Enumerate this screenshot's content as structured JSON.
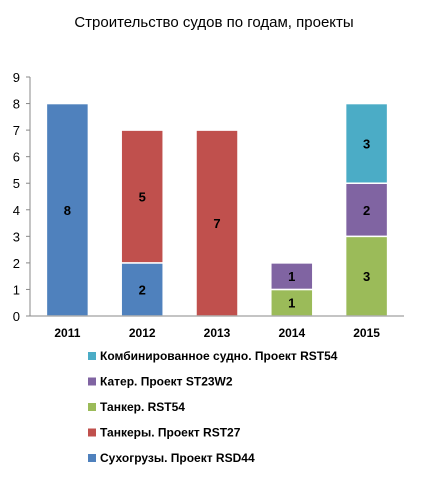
{
  "chart_data": {
    "type": "bar",
    "stacked": true,
    "title": "Строительство судов по годам, проекты",
    "xlabel": "",
    "ylabel": "",
    "ylim": [
      0,
      9
    ],
    "yticks": [
      0,
      1,
      2,
      3,
      4,
      5,
      6,
      7,
      8,
      9
    ],
    "grid": false,
    "legend_position": "bottom",
    "categories": [
      "2011",
      "2012",
      "2013",
      "2014",
      "2015"
    ],
    "series": [
      {
        "name": "Сухогрузы. Проект RSD44",
        "color": "#4f81bd",
        "values": [
          8,
          2,
          0,
          0,
          0
        ]
      },
      {
        "name": "Танкеры. Проект RST27",
        "color": "#c0504d",
        "values": [
          0,
          5,
          7,
          0,
          0
        ]
      },
      {
        "name": "Танкер. RST54",
        "color": "#9bbb59",
        "values": [
          0,
          0,
          0,
          1,
          3
        ]
      },
      {
        "name": "Катер. Проект ST23W2",
        "color": "#8064a2",
        "values": [
          0,
          0,
          0,
          1,
          2
        ]
      },
      {
        "name": "Комбинированное судно. Проект RST54",
        "color": "#4bacc6",
        "values": [
          0,
          0,
          0,
          0,
          3
        ]
      }
    ]
  }
}
